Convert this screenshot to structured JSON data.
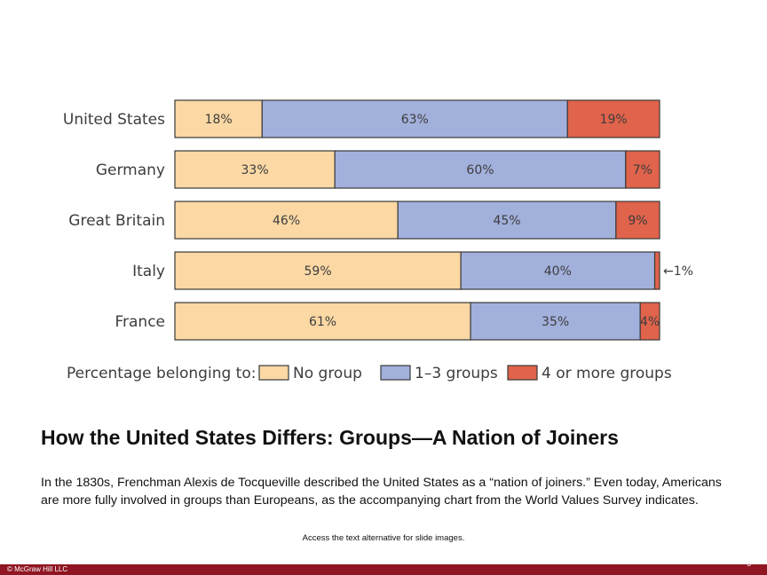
{
  "chart_data": {
    "type": "bar",
    "orientation": "horizontal",
    "stacked": true,
    "categories": [
      "United States",
      "Germany",
      "Great Britain",
      "Italy",
      "France"
    ],
    "series": [
      {
        "name": "No group",
        "values": [
          18,
          33,
          46,
          59,
          61
        ],
        "color": "#fbd8a4"
      },
      {
        "name": "1–3 groups",
        "values": [
          63,
          60,
          45,
          40,
          35
        ],
        "color": "#a2b0dc"
      },
      {
        "name": "4 or more groups",
        "values": [
          19,
          7,
          9,
          1,
          4
        ],
        "color": "#e0634b"
      }
    ],
    "value_labels": [
      [
        "18%",
        "63%",
        "19%"
      ],
      [
        "33%",
        "60%",
        "7%"
      ],
      [
        "46%",
        "45%",
        "9%"
      ],
      [
        "59%",
        "40%",
        "←1%"
      ],
      [
        "61%",
        "35%",
        "4%"
      ]
    ],
    "legend_title": "Percentage belonging to:",
    "xlim": [
      0,
      100
    ]
  },
  "slide": {
    "title": "How the United States Differs: Groups—A Nation of Joiners",
    "body": "In the 1830s, Frenchman Alexis de Tocqueville described the United States as a “nation of joiners.” Even today, Americans are more fully involved in groups than Europeans, as the accompanying chart from the World Values Survey indicates.",
    "alt_link": "Access the text alternative for slide images."
  },
  "footer": {
    "copyright": "© McGraw Hill LLC",
    "page_number": "3"
  }
}
